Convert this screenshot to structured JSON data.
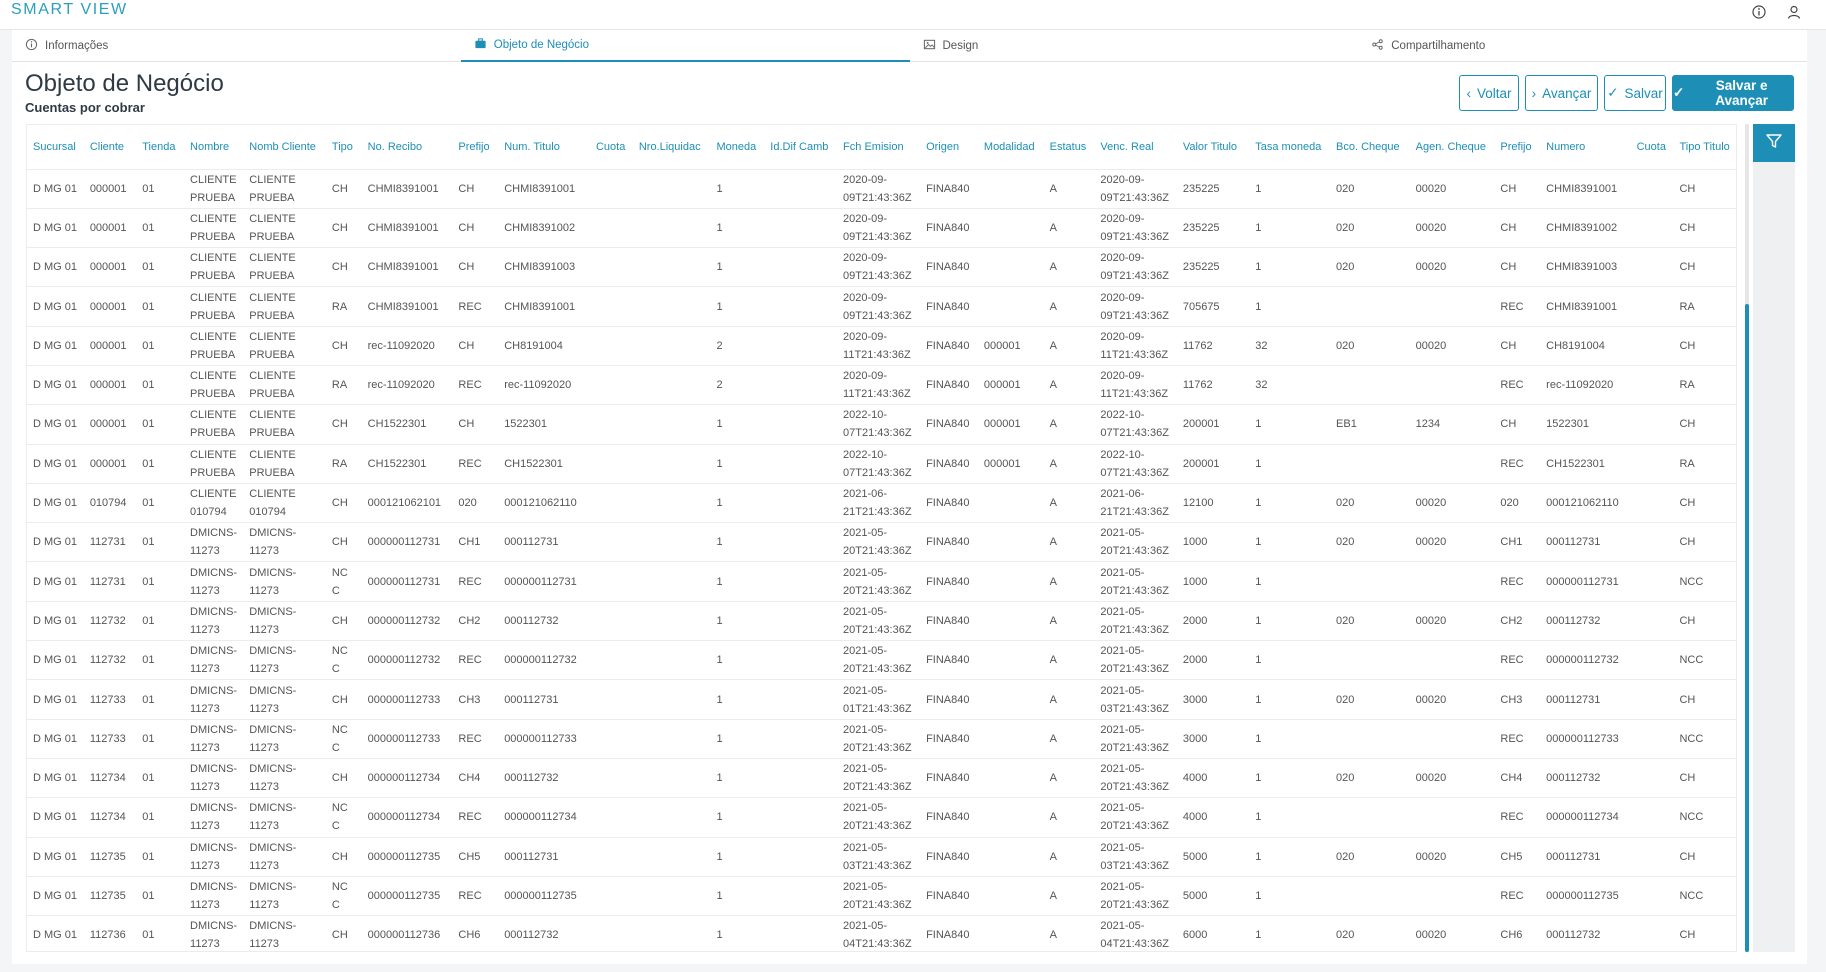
{
  "app": {
    "brand": "SMART VIEW"
  },
  "header": {
    "info_icon": "info-icon",
    "user_icon": "user-icon"
  },
  "tabs": [
    {
      "label": "Informações",
      "icon": "info-icon",
      "active": false
    },
    {
      "label": "Objeto de Negócio",
      "icon": "briefcase-icon",
      "active": true
    },
    {
      "label": "Design",
      "icon": "image-icon",
      "active": false
    },
    {
      "label": "Compartilhamento",
      "icon": "share-icon",
      "active": false
    }
  ],
  "page": {
    "title": "Objeto de Negócio",
    "subtitle": "Cuentas por cobrar"
  },
  "actions": {
    "back": "Voltar",
    "next": "Avançar",
    "save": "Salvar",
    "save_next": "Salvar e Avançar"
  },
  "colors": {
    "accent": "#1d8fb6"
  },
  "table": {
    "columns": [
      "Sucursal",
      "Cliente",
      "Tienda",
      "Nombre",
      "Nomb Cliente",
      "Tipo",
      "No. Recibo",
      "Prefijo",
      "Num. Titulo",
      "Cuota",
      "Nro.Liquidac",
      "Moneda",
      "Id.Dif Camb",
      "Fch Emision",
      "Origen",
      "Modalidad",
      "Estatus",
      "Venc. Real",
      "Valor Titulo",
      "Tasa moneda",
      "Bco. Cheque",
      "Agen. Cheque",
      "Prefijo",
      "Numero",
      "Cuota",
      "Tipo Titulo"
    ],
    "rows": [
      [
        "D MG 01",
        "000001",
        "01",
        "CLIENTE PRUEBA",
        "CLIENTE PRUEBA",
        "CH",
        "CHMI8391001",
        "CH",
        "CHMI8391001",
        "",
        "",
        "1",
        "",
        "2020-09-09T21:43:36Z",
        "FINA840",
        "",
        "A",
        "2020-09-09T21:43:36Z",
        "235225",
        "1",
        "020",
        "00020",
        "CH",
        "CHMI8391001",
        "",
        "CH"
      ],
      [
        "D MG 01",
        "000001",
        "01",
        "CLIENTE PRUEBA",
        "CLIENTE PRUEBA",
        "CH",
        "CHMI8391001",
        "CH",
        "CHMI8391002",
        "",
        "",
        "1",
        "",
        "2020-09-09T21:43:36Z",
        "FINA840",
        "",
        "A",
        "2020-09-09T21:43:36Z",
        "235225",
        "1",
        "020",
        "00020",
        "CH",
        "CHMI8391002",
        "",
        "CH"
      ],
      [
        "D MG 01",
        "000001",
        "01",
        "CLIENTE PRUEBA",
        "CLIENTE PRUEBA",
        "CH",
        "CHMI8391001",
        "CH",
        "CHMI8391003",
        "",
        "",
        "1",
        "",
        "2020-09-09T21:43:36Z",
        "FINA840",
        "",
        "A",
        "2020-09-09T21:43:36Z",
        "235225",
        "1",
        "020",
        "00020",
        "CH",
        "CHMI8391003",
        "",
        "CH"
      ],
      [
        "D MG 01",
        "000001",
        "01",
        "CLIENTE PRUEBA",
        "CLIENTE PRUEBA",
        "RA",
        "CHMI8391001",
        "REC",
        "CHMI8391001",
        "",
        "",
        "1",
        "",
        "2020-09-09T21:43:36Z",
        "FINA840",
        "",
        "A",
        "2020-09-09T21:43:36Z",
        "705675",
        "1",
        "",
        "",
        "REC",
        "CHMI8391001",
        "",
        "RA"
      ],
      [
        "D MG 01",
        "000001",
        "01",
        "CLIENTE PRUEBA",
        "CLIENTE PRUEBA",
        "CH",
        "rec-11092020",
        "CH",
        "CH8191004",
        "",
        "",
        "2",
        "",
        "2020-09-11T21:43:36Z",
        "FINA840",
        "000001",
        "A",
        "2020-09-11T21:43:36Z",
        "11762",
        "32",
        "020",
        "00020",
        "CH",
        "CH8191004",
        "",
        "CH"
      ],
      [
        "D MG 01",
        "000001",
        "01",
        "CLIENTE PRUEBA",
        "CLIENTE PRUEBA",
        "RA",
        "rec-11092020",
        "REC",
        "rec-11092020",
        "",
        "",
        "2",
        "",
        "2020-09-11T21:43:36Z",
        "FINA840",
        "000001",
        "A",
        "2020-09-11T21:43:36Z",
        "11762",
        "32",
        "",
        "",
        "REC",
        "rec-11092020",
        "",
        "RA"
      ],
      [
        "D MG 01",
        "000001",
        "01",
        "CLIENTE PRUEBA",
        "CLIENTE PRUEBA",
        "CH",
        "CH1522301",
        "CH",
        "1522301",
        "",
        "",
        "1",
        "",
        "2022-10-07T21:43:36Z",
        "FINA840",
        "000001",
        "A",
        "2022-10-07T21:43:36Z",
        "200001",
        "1",
        "EB1",
        "1234",
        "CH",
        "1522301",
        "",
        "CH"
      ],
      [
        "D MG 01",
        "000001",
        "01",
        "CLIENTE PRUEBA",
        "CLIENTE PRUEBA",
        "RA",
        "CH1522301",
        "REC",
        "CH1522301",
        "",
        "",
        "1",
        "",
        "2022-10-07T21:43:36Z",
        "FINA840",
        "000001",
        "A",
        "2022-10-07T21:43:36Z",
        "200001",
        "1",
        "",
        "",
        "REC",
        "CH1522301",
        "",
        "RA"
      ],
      [
        "D MG 01",
        "010794",
        "01",
        "CLIENTE 010794",
        "CLIENTE 010794",
        "CH",
        "000121062101",
        "020",
        "000121062110",
        "",
        "",
        "1",
        "",
        "2021-06-21T21:43:36Z",
        "FINA840",
        "",
        "A",
        "2021-06-21T21:43:36Z",
        "12100",
        "1",
        "020",
        "00020",
        "020",
        "000121062110",
        "",
        "CH"
      ],
      [
        "D MG 01",
        "112731",
        "01",
        "DMICNS-11273",
        "DMICNS-11273",
        "CH",
        "000000112731",
        "CH1",
        "000112731",
        "",
        "",
        "1",
        "",
        "2021-05-20T21:43:36Z",
        "FINA840",
        "",
        "A",
        "2021-05-20T21:43:36Z",
        "1000",
        "1",
        "020",
        "00020",
        "CH1",
        "000112731",
        "",
        "CH"
      ],
      [
        "D MG 01",
        "112731",
        "01",
        "DMICNS-11273",
        "DMICNS-11273",
        "NCC",
        "000000112731",
        "REC",
        "000000112731",
        "",
        "",
        "1",
        "",
        "2021-05-20T21:43:36Z",
        "FINA840",
        "",
        "A",
        "2021-05-20T21:43:36Z",
        "1000",
        "1",
        "",
        "",
        "REC",
        "000000112731",
        "",
        "NCC"
      ],
      [
        "D MG 01",
        "112732",
        "01",
        "DMICNS-11273",
        "DMICNS-11273",
        "CH",
        "000000112732",
        "CH2",
        "000112732",
        "",
        "",
        "1",
        "",
        "2021-05-20T21:43:36Z",
        "FINA840",
        "",
        "A",
        "2021-05-20T21:43:36Z",
        "2000",
        "1",
        "020",
        "00020",
        "CH2",
        "000112732",
        "",
        "CH"
      ],
      [
        "D MG 01",
        "112732",
        "01",
        "DMICNS-11273",
        "DMICNS-11273",
        "NCC",
        "000000112732",
        "REC",
        "000000112732",
        "",
        "",
        "1",
        "",
        "2021-05-20T21:43:36Z",
        "FINA840",
        "",
        "A",
        "2021-05-20T21:43:36Z",
        "2000",
        "1",
        "",
        "",
        "REC",
        "000000112732",
        "",
        "NCC"
      ],
      [
        "D MG 01",
        "112733",
        "01",
        "DMICNS-11273",
        "DMICNS-11273",
        "CH",
        "000000112733",
        "CH3",
        "000112731",
        "",
        "",
        "1",
        "",
        "2021-05-01T21:43:36Z",
        "FINA840",
        "",
        "A",
        "2021-05-03T21:43:36Z",
        "3000",
        "1",
        "020",
        "00020",
        "CH3",
        "000112731",
        "",
        "CH"
      ],
      [
        "D MG 01",
        "112733",
        "01",
        "DMICNS-11273",
        "DMICNS-11273",
        "NCC",
        "000000112733",
        "REC",
        "000000112733",
        "",
        "",
        "1",
        "",
        "2021-05-20T21:43:36Z",
        "FINA840",
        "",
        "A",
        "2021-05-20T21:43:36Z",
        "3000",
        "1",
        "",
        "",
        "REC",
        "000000112733",
        "",
        "NCC"
      ],
      [
        "D MG 01",
        "112734",
        "01",
        "DMICNS-11273",
        "DMICNS-11273",
        "CH",
        "000000112734",
        "CH4",
        "000112732",
        "",
        "",
        "1",
        "",
        "2021-05-20T21:43:36Z",
        "FINA840",
        "",
        "A",
        "2021-05-20T21:43:36Z",
        "4000",
        "1",
        "020",
        "00020",
        "CH4",
        "000112732",
        "",
        "CH"
      ],
      [
        "D MG 01",
        "112734",
        "01",
        "DMICNS-11273",
        "DMICNS-11273",
        "NCC",
        "000000112734",
        "REC",
        "000000112734",
        "",
        "",
        "1",
        "",
        "2021-05-20T21:43:36Z",
        "FINA840",
        "",
        "A",
        "2021-05-20T21:43:36Z",
        "4000",
        "1",
        "",
        "",
        "REC",
        "000000112734",
        "",
        "NCC"
      ],
      [
        "D MG 01",
        "112735",
        "01",
        "DMICNS-11273",
        "DMICNS-11273",
        "CH",
        "000000112735",
        "CH5",
        "000112731",
        "",
        "",
        "1",
        "",
        "2021-05-03T21:43:36Z",
        "FINA840",
        "",
        "A",
        "2021-05-03T21:43:36Z",
        "5000",
        "1",
        "020",
        "00020",
        "CH5",
        "000112731",
        "",
        "CH"
      ],
      [
        "D MG 01",
        "112735",
        "01",
        "DMICNS-11273",
        "DMICNS-11273",
        "NCC",
        "000000112735",
        "REC",
        "000000112735",
        "",
        "",
        "1",
        "",
        "2021-05-20T21:43:36Z",
        "FINA840",
        "",
        "A",
        "2021-05-20T21:43:36Z",
        "5000",
        "1",
        "",
        "",
        "REC",
        "000000112735",
        "",
        "NCC"
      ],
      [
        "D MG 01",
        "112736",
        "01",
        "DMICNS-11273",
        "DMICNS-11273",
        "CH",
        "000000112736",
        "CH6",
        "000112732",
        "",
        "",
        "1",
        "",
        "2021-05-04T21:43:36Z",
        "FINA840",
        "",
        "A",
        "2021-05-04T21:43:36Z",
        "6000",
        "1",
        "020",
        "00020",
        "CH6",
        "000112732",
        "",
        "CH"
      ]
    ]
  }
}
